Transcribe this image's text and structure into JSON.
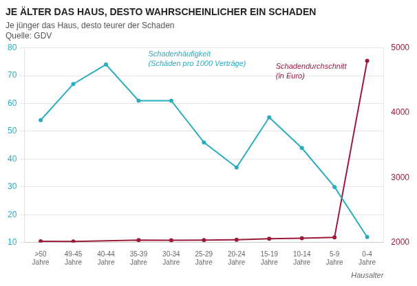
{
  "chart_data": {
    "type": "line",
    "title": "JE ÄLTER DAS HAUS, DESTO WAHRSCHEINLICHER EIN SCHADEN",
    "subtitle": "Je jünger das Haus, desto teurer der Schaden",
    "source": "Quelle: GDV",
    "xlabel": "Hausalter",
    "categories": [
      ">50\nJahre",
      "49-45\nJahre",
      "40-44\nJahre",
      "35-39\nJahre",
      "30-34\nJahre",
      "25-29\nJahre",
      "20-24\nJahre",
      "15-19\nJahre",
      "10-14\nJahre",
      "5-9\nJahre",
      "0-4\nJahre"
    ],
    "series": [
      {
        "color": "#2aacbe",
        "marker": "circle",
        "values": [
          54,
          67,
          74,
          61,
          61,
          46,
          37,
          55,
          44,
          30,
          12
        ]
      },
      {
        "color": "#9b1a3a",
        "marker": "circle",
        "axis": "y2",
        "values": [
          2020,
          2016,
          null,
          2037,
          2035,
          2037,
          2043,
          2059,
          2066,
          2080,
          4800
        ]
      }
    ],
    "annotations": [
      {
        "text": [
          "Schadenhäufigkeit",
          "(Schäden pro 1000 Verträge)"
        ],
        "color": "#2aacbe"
      },
      {
        "text": [
          "Schadendurchschnitt",
          "(in Euro)"
        ],
        "color": "#9b1a3a"
      }
    ],
    "ylim": [
      10,
      80
    ],
    "yticks": [
      10,
      20,
      30,
      40,
      50,
      60,
      70,
      80
    ],
    "y2lim": [
      2000,
      5000
    ],
    "y2ticks": [
      2000,
      3000,
      4000,
      5000
    ],
    "grid": true,
    "legend": false
  }
}
